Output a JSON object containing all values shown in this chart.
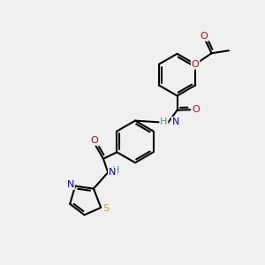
{
  "bg_color": "#f0f0f0",
  "atom_colors": {
    "C": "#000000",
    "N": "#0000cc",
    "O": "#cc0000",
    "S": "#ccaa00",
    "H": "#4a9090"
  },
  "bond_color": "#000000",
  "bond_lw": 1.5
}
